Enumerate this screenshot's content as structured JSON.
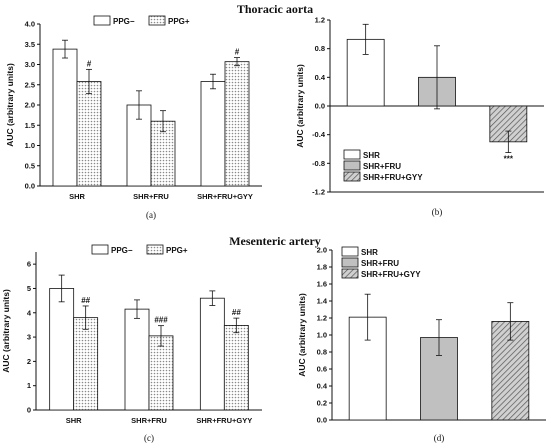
{
  "titles": {
    "top": "Thoracic aorta",
    "bottom": "Mesenteric artery"
  },
  "colors": {
    "bar_white": "#ffffff",
    "bar_gray": "#c0c0c0",
    "dots_fill": "#8a8a8a",
    "hatch": "#555555",
    "axis": "#111111"
  },
  "chart_data": [
    {
      "panel": "a",
      "panel_label": "(a)",
      "type": "bar",
      "categories": [
        "SHR",
        "SHR+FRU",
        "SHR+FRU+GYY"
      ],
      "series": [
        {
          "name": "PPG−",
          "values": [
            3.38,
            2.0,
            2.58
          ],
          "errors": [
            0.22,
            0.35,
            0.18
          ],
          "pattern": "white"
        },
        {
          "name": "PPG+",
          "values": [
            2.58,
            1.6,
            3.07
          ],
          "errors": [
            0.3,
            0.26,
            0.1
          ],
          "pattern": "dots"
        }
      ],
      "annotations": [
        {
          "category": 0,
          "series": 1,
          "text": "#"
        },
        {
          "category": 2,
          "series": 1,
          "text": "#"
        }
      ],
      "ylabel": "AUC (arbitrary units)",
      "ylim": [
        0,
        4
      ],
      "yticks": [
        0,
        0.5,
        1.0,
        1.5,
        2.0,
        2.5,
        3.0,
        3.5,
        4.0
      ],
      "ytick_labels": [
        "0.0",
        "0.5",
        "1.0",
        "1.5",
        "2.0",
        "2.5",
        "3.0",
        "3.5",
        "4.0"
      ],
      "legend": "top-center"
    },
    {
      "panel": "b",
      "panel_label": "(b)",
      "type": "bar",
      "categories": [
        "SHR",
        "SHR+FRU",
        "SHR+FRU+GYY"
      ],
      "series": [
        {
          "name": "",
          "values": [
            0.93,
            0.4,
            -0.5
          ],
          "errors": [
            0.21,
            0.44,
            0.15
          ],
          "patterns": [
            "white",
            "gray",
            "hatch"
          ]
        }
      ],
      "annotations": [
        {
          "category": 2,
          "series": 0,
          "text": "***",
          "below": true
        }
      ],
      "legend_entries": [
        "SHR",
        "SHR+FRU",
        "SHR+FRU+GYY"
      ],
      "ylabel": "AUC (arbitrary units)",
      "ylim": [
        -1.2,
        1.2
      ],
      "yticks": [
        -1.2,
        -0.8,
        -0.4,
        0.0,
        0.4,
        0.8,
        1.2
      ],
      "ytick_labels": [
        "-1.2",
        "-0.8",
        "-0.4",
        "0.0",
        "0.4",
        "0.8",
        "1.2"
      ],
      "legend": "bottom-left"
    },
    {
      "panel": "c",
      "panel_label": "(c)",
      "type": "bar",
      "categories": [
        "SHR",
        "SHR+FRU",
        "SHR+FRU+GYY"
      ],
      "series": [
        {
          "name": "PPG−",
          "values": [
            5.0,
            4.15,
            4.6
          ],
          "errors": [
            0.55,
            0.38,
            0.3
          ],
          "pattern": "white"
        },
        {
          "name": "PPG+",
          "values": [
            3.8,
            3.05,
            3.48
          ],
          "errors": [
            0.48,
            0.42,
            0.3
          ],
          "pattern": "dots"
        }
      ],
      "annotations": [
        {
          "category": 0,
          "series": 1,
          "text": "##"
        },
        {
          "category": 1,
          "series": 1,
          "text": "###"
        },
        {
          "category": 2,
          "series": 1,
          "text": "##"
        }
      ],
      "ylabel": "AUC (arbitrary units)",
      "ylim": [
        0,
        6.5
      ],
      "yticks": [
        0,
        1,
        2,
        3,
        4,
        5,
        6
      ],
      "ytick_labels": [
        "0",
        "1",
        "2",
        "3",
        "4",
        "5",
        "6"
      ],
      "legend": "top-center"
    },
    {
      "panel": "d",
      "panel_label": "(d)",
      "type": "bar",
      "categories": [
        "SHR",
        "SHR+FRU",
        "SHR+FRU+GYY"
      ],
      "series": [
        {
          "name": "",
          "values": [
            1.21,
            0.97,
            1.16
          ],
          "errors": [
            0.27,
            0.21,
            0.22
          ],
          "patterns": [
            "white",
            "gray",
            "hatch"
          ]
        }
      ],
      "annotations": [],
      "legend_entries": [
        "SHR",
        "SHR+FRU",
        "SHR+FRU+GYY"
      ],
      "ylabel": "AUC (arbitrary units)",
      "ylim": [
        0,
        2.0
      ],
      "yticks": [
        0,
        0.2,
        0.4,
        0.6,
        0.8,
        1.0,
        1.2,
        1.4,
        1.6,
        1.8,
        2.0
      ],
      "ytick_labels": [
        "0.0",
        "0.2",
        "0.4",
        "0.6",
        "0.8",
        "1.0",
        "1.2",
        "1.4",
        "1.6",
        "1.8",
        "2.0"
      ],
      "legend": "top-left"
    }
  ]
}
